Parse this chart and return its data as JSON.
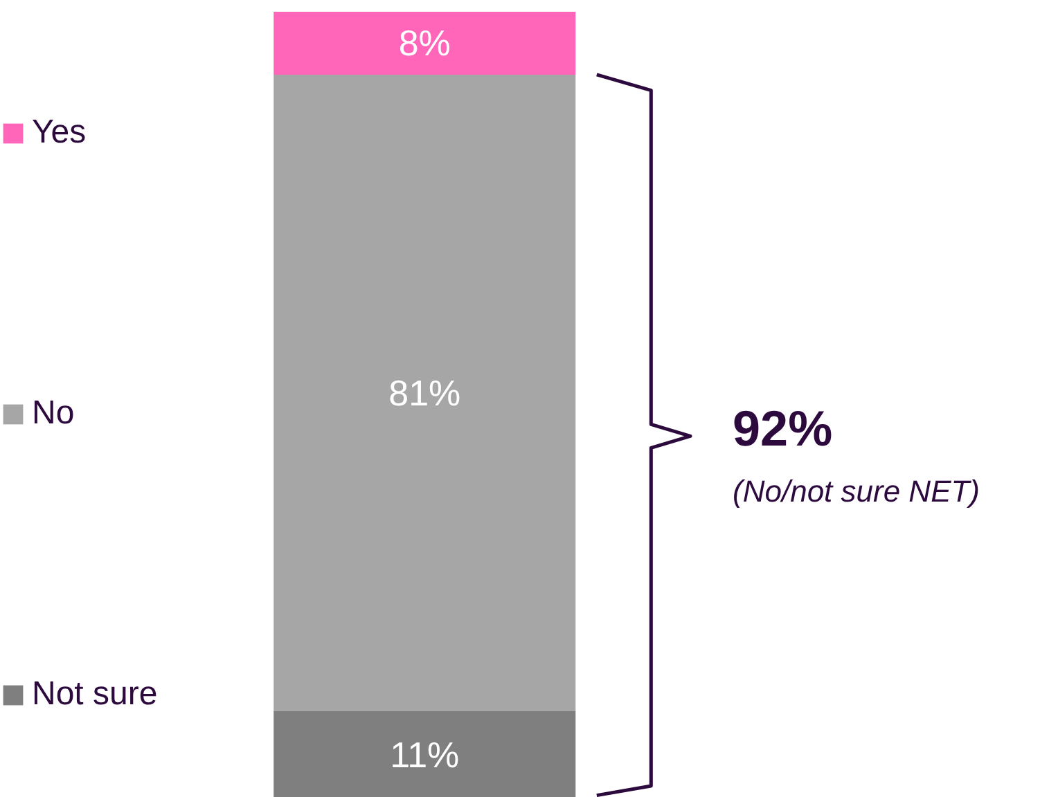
{
  "chart_data": {
    "type": "bar",
    "stacked": true,
    "categories": [
      null
    ],
    "series": [
      {
        "name": "Not sure",
        "color": "#7f7f7f",
        "values": [
          11
        ],
        "value_labels": [
          "11%"
        ]
      },
      {
        "name": "No",
        "color": "#a6a6a6",
        "values": [
          81
        ],
        "value_labels": [
          "81%"
        ]
      },
      {
        "name": "Yes",
        "color": "#ff66b9",
        "values": [
          8
        ],
        "value_labels": [
          "8%"
        ]
      }
    ],
    "legend": "left",
    "tick_labels": false,
    "grid": false,
    "annotations": [
      "92%",
      "(No/not sure NET)"
    ]
  }
}
